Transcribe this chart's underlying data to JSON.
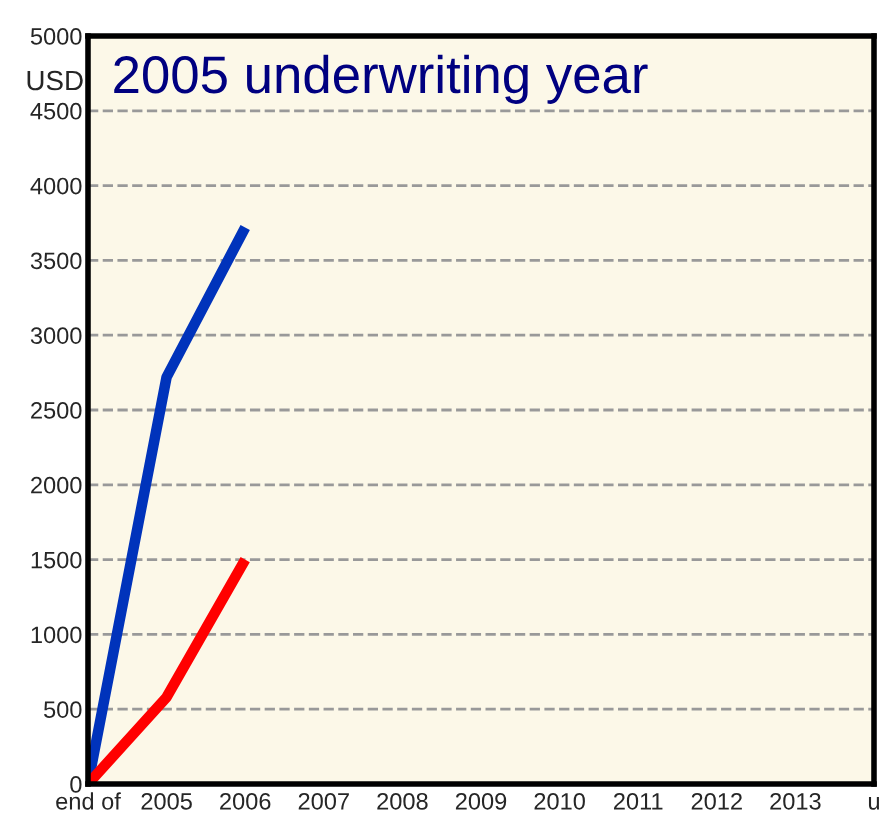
{
  "chart_data": {
    "type": "line",
    "title": "2005 underwriting year",
    "ylabel": "USD",
    "categories": [
      "end of",
      "2005",
      "2006",
      "2007",
      "2008",
      "2009",
      "2010",
      "2011",
      "2012",
      "2013",
      "u"
    ],
    "ylim": [
      0,
      5000
    ],
    "yticks": [
      0,
      500,
      1000,
      1500,
      2000,
      2500,
      3000,
      3500,
      4000,
      4500,
      5000
    ],
    "grid": "y",
    "line_style": "solid",
    "marker": "none",
    "series": [
      {
        "color": "#0033bb",
        "values": [
          0,
          2720,
          3720,
          null,
          null,
          null,
          null,
          null,
          null,
          null,
          null
        ]
      },
      {
        "color": "#ff0000",
        "values": [
          0,
          580,
          1500,
          null,
          null,
          null,
          null,
          null,
          null,
          null,
          null
        ]
      }
    ]
  }
}
